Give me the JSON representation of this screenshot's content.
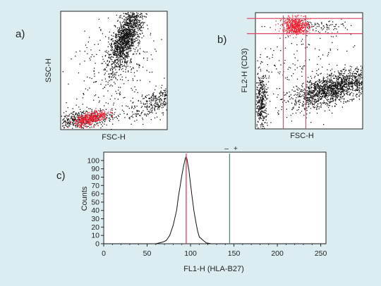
{
  "colors": {
    "background": "#dcedf2",
    "plot_bg": "#ffffff",
    "dots": "#111111",
    "gated_dots": "#ee2233",
    "gate_lines": "#e0506e",
    "marker_line": "#e03a5a",
    "threshold_line": "#2e9a86"
  },
  "chart_data": [
    {
      "type": "scatter",
      "panel_label": "a)",
      "xlabel": "FSC-H",
      "ylabel": "SSC-H",
      "populations": [
        {
          "color": "black",
          "x_center": 0.61,
          "y_center": 0.78,
          "note_shape": "large elongated cluster"
        },
        {
          "color": "red",
          "x_center": 0.28,
          "y_center": 0.1,
          "note_shape": "small gated cluster"
        },
        {
          "color": "black",
          "x_center": 0.88,
          "y_center": 0.23,
          "note_shape": "diagonal stream to right"
        }
      ]
    },
    {
      "type": "scatter",
      "panel_label": "b)",
      "xlabel": "FSC-H",
      "ylabel": "FL2-H (CD3)",
      "gates": {
        "horizontal_lines": [
          0.95,
          0.82
        ],
        "vertical_lines": [
          0.26,
          0.47
        ]
      },
      "populations": [
        {
          "color": "red",
          "x_center": 0.37,
          "y_center": 0.89,
          "note_shape": "gated CD3+ cluster"
        },
        {
          "color": "black",
          "x_center": 0.72,
          "y_center": 0.35,
          "note_shape": "elongated band"
        }
      ]
    },
    {
      "type": "line",
      "panel_label": "c)",
      "xlabel": "FL1-H (HLA-B27)",
      "ylabel": "Counts",
      "xlim": [
        0,
        256
      ],
      "ylim": [
        0,
        110
      ],
      "xticks": [
        0,
        50,
        100,
        150,
        200,
        250
      ],
      "yticks": [
        0,
        10,
        20,
        30,
        40,
        50,
        60,
        70,
        80,
        90,
        100
      ],
      "marker_labels": [
        "–",
        "+"
      ],
      "peak_marker_x": 95,
      "threshold_x": 145,
      "series": [
        {
          "x": [
            0,
            60,
            68,
            72,
            76,
            80,
            84,
            86,
            88,
            90,
            92,
            94,
            95,
            96,
            98,
            100,
            102,
            104,
            106,
            108,
            110,
            114,
            118,
            124,
            256
          ],
          "y": [
            0,
            0,
            2,
            4,
            10,
            22,
            40,
            55,
            68,
            82,
            92,
            103,
            105,
            100,
            90,
            72,
            55,
            40,
            27,
            16,
            9,
            4,
            2,
            0,
            0
          ]
        }
      ]
    }
  ]
}
